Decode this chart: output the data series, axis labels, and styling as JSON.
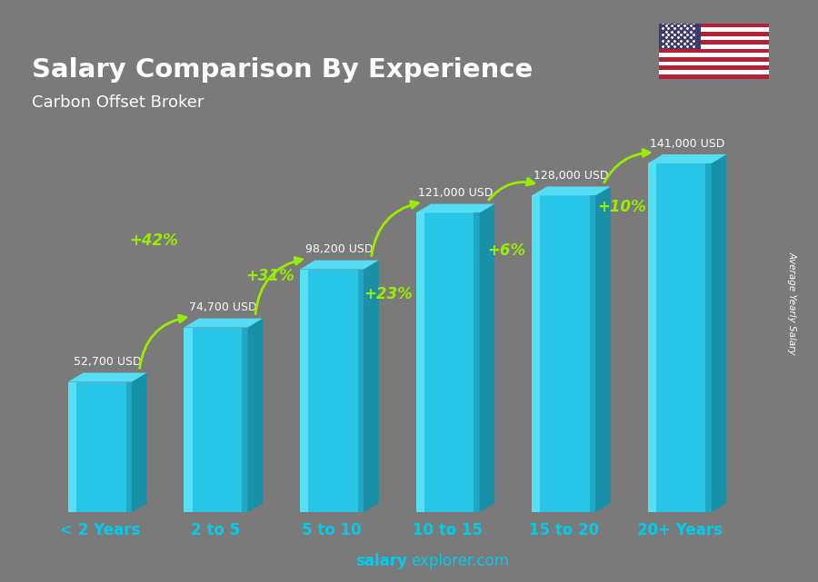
{
  "title": "Salary Comparison By Experience",
  "subtitle": "Carbon Offset Broker",
  "categories": [
    "< 2 Years",
    "2 to 5",
    "5 to 10",
    "10 to 15",
    "15 to 20",
    "20+ Years"
  ],
  "values": [
    52700,
    74700,
    98200,
    121000,
    128000,
    141000
  ],
  "labels": [
    "52,700 USD",
    "74,700 USD",
    "98,200 USD",
    "121,000 USD",
    "128,000 USD",
    "141,000 USD"
  ],
  "pct_labels": [
    "+42%",
    "+31%",
    "+23%",
    "+6%",
    "+10%"
  ],
  "front_color": "#29c5e6",
  "side_color": "#1890a8",
  "top_color": "#55ddf5",
  "highlight_color": "#70eeff",
  "bg_color": "#7a7a7a",
  "title_color": "#ffffff",
  "subtitle_color": "#ffffff",
  "label_color": "#ffffff",
  "pct_color": "#99ee00",
  "xticklabel_color": "#00ccee",
  "watermark_bold": "salary",
  "watermark_normal": "explorer.com",
  "ylabel": "Average Yearly Salary",
  "ylim": [
    0,
    160000
  ]
}
